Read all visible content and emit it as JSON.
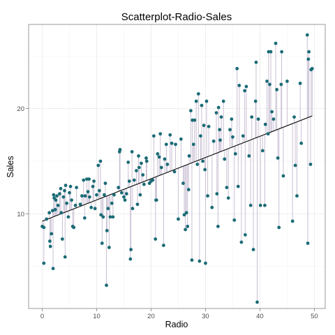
{
  "chart_data": {
    "type": "scatter",
    "title": "Scatterplot-Radio-Sales",
    "xlabel": "Radio",
    "ylabel": "Sales",
    "xlim": [
      -2.5,
      52
    ],
    "ylim": [
      1.0,
      28.0
    ],
    "x_ticks": [
      0,
      10,
      20,
      30,
      40,
      50
    ],
    "y_ticks": [
      10,
      20
    ],
    "grid": true,
    "legend": "none",
    "colors": {
      "points": "#1a6b75",
      "residual_lines": "#c9bfd3",
      "fit_line": "#000000",
      "grid": "#ebebeb",
      "panel_border": "#7f7f7f"
    },
    "fit_line": {
      "x": [
        0,
        49.6
      ],
      "y": [
        9.3,
        19.3
      ]
    },
    "points": [
      [
        0.0,
        8.8
      ],
      [
        0.3,
        8.7
      ],
      [
        0.3,
        5.3
      ],
      [
        0.8,
        9.5
      ],
      [
        1.3,
        10.1
      ],
      [
        1.4,
        7.4
      ],
      [
        1.5,
        6.9
      ],
      [
        1.7,
        8.1
      ],
      [
        1.9,
        10.3
      ],
      [
        2.0,
        4.8
      ],
      [
        2.1,
        11.8
      ],
      [
        2.2,
        11.5
      ],
      [
        2.4,
        10.4
      ],
      [
        2.5,
        11.3
      ],
      [
        2.7,
        11.7
      ],
      [
        2.9,
        10.8
      ],
      [
        3.2,
        11.9
      ],
      [
        3.4,
        12.4
      ],
      [
        3.5,
        10.1
      ],
      [
        3.7,
        7.6
      ],
      [
        3.9,
        11.6
      ],
      [
        4.1,
        12.2
      ],
      [
        4.2,
        5.9
      ],
      [
        4.3,
        12.7
      ],
      [
        4.5,
        11.0
      ],
      [
        4.8,
        9.7
      ],
      [
        5.0,
        12.0
      ],
      [
        5.2,
        12.6
      ],
      [
        5.4,
        11.3
      ],
      [
        5.6,
        8.8
      ],
      [
        5.8,
        8.7
      ],
      [
        6.1,
        10.8
      ],
      [
        6.3,
        12.5
      ],
      [
        7.0,
        10.9
      ],
      [
        7.3,
        11.7
      ],
      [
        7.6,
        13.2
      ],
      [
        7.8,
        9.6
      ],
      [
        7.9,
        11.7
      ],
      [
        8.2,
        13.3
      ],
      [
        8.4,
        12.1
      ],
      [
        8.6,
        13.3
      ],
      [
        8.7,
        11.6
      ],
      [
        9.0,
        10.6
      ],
      [
        9.3,
        12.6
      ],
      [
        9.5,
        13.1
      ],
      [
        9.7,
        10.5
      ],
      [
        10.0,
        11.8
      ],
      [
        10.3,
        14.6
      ],
      [
        10.5,
        12.2
      ],
      [
        10.7,
        15.0
      ],
      [
        10.8,
        9.9
      ],
      [
        11.0,
        7.2
      ],
      [
        11.2,
        9.7
      ],
      [
        11.4,
        11.8
      ],
      [
        11.6,
        12.9
      ],
      [
        11.8,
        3.2
      ],
      [
        11.9,
        8.4
      ],
      [
        12.1,
        10.5
      ],
      [
        12.3,
        6.8
      ],
      [
        12.5,
        9.7
      ],
      [
        12.8,
        11.0
      ],
      [
        13.0,
        9.7
      ],
      [
        13.2,
        11.8
      ],
      [
        14.0,
        12.5
      ],
      [
        14.2,
        15.9
      ],
      [
        14.3,
        16.1
      ],
      [
        14.6,
        12.0
      ],
      [
        15.0,
        11.6
      ],
      [
        15.2,
        11.3
      ],
      [
        15.5,
        11.9
      ],
      [
        15.8,
        14.9
      ],
      [
        16.0,
        13.1
      ],
      [
        16.2,
        5.7
      ],
      [
        16.3,
        6.6
      ],
      [
        16.5,
        15.9
      ],
      [
        16.6,
        10.5
      ],
      [
        16.9,
        13.2
      ],
      [
        17.3,
        14.1
      ],
      [
        17.5,
        10.9
      ],
      [
        17.7,
        15.5
      ],
      [
        17.8,
        14.4
      ],
      [
        18.0,
        11.8
      ],
      [
        18.2,
        14.8
      ],
      [
        18.5,
        13.7
      ],
      [
        18.7,
        12.8
      ],
      [
        19.1,
        15.3
      ],
      [
        19.2,
        15.0
      ],
      [
        19.7,
        12.9
      ],
      [
        20.0,
        13.1
      ],
      [
        20.3,
        13.2
      ],
      [
        20.5,
        17.4
      ],
      [
        20.8,
        7.6
      ],
      [
        20.9,
        11.3
      ],
      [
        21.0,
        11.3
      ],
      [
        21.2,
        15.7
      ],
      [
        21.5,
        15.4
      ],
      [
        21.7,
        17.6
      ],
      [
        21.9,
        14.4
      ],
      [
        22.3,
        7.0
      ],
      [
        22.5,
        15.2
      ],
      [
        22.8,
        16.6
      ],
      [
        23.0,
        14.7
      ],
      [
        23.5,
        17.5
      ],
      [
        23.8,
        16.7
      ],
      [
        24.3,
        14.0
      ],
      [
        24.5,
        16.6
      ],
      [
        25.0,
        9.5
      ],
      [
        25.5,
        17.1
      ],
      [
        25.9,
        12.9
      ],
      [
        26.1,
        9.9
      ],
      [
        26.3,
        8.5
      ],
      [
        26.5,
        10.1
      ],
      [
        26.7,
        8.8
      ],
      [
        26.9,
        12.3
      ],
      [
        27.0,
        15.5
      ],
      [
        27.3,
        19.8
      ],
      [
        27.5,
        5.6
      ],
      [
        27.6,
        18.9
      ],
      [
        27.8,
        16.6
      ],
      [
        28.0,
        18.9
      ],
      [
        28.3,
        20.7
      ],
      [
        28.5,
        14.7
      ],
      [
        28.7,
        21.4
      ],
      [
        28.9,
        5.5
      ],
      [
        29.1,
        17.4
      ],
      [
        29.3,
        20.3
      ],
      [
        29.5,
        15.0
      ],
      [
        29.7,
        18.4
      ],
      [
        29.9,
        14.2
      ],
      [
        30.0,
        5.3
      ],
      [
        30.2,
        20.7
      ],
      [
        30.4,
        11.7
      ],
      [
        30.6,
        18.3
      ],
      [
        31.2,
        10.6
      ],
      [
        31.5,
        16.9
      ],
      [
        32.0,
        19.6
      ],
      [
        32.1,
        11.9
      ],
      [
        32.3,
        8.8
      ],
      [
        32.4,
        20.1
      ],
      [
        32.6,
        18.0
      ],
      [
        32.7,
        17.0
      ],
      [
        32.9,
        19.2
      ],
      [
        33.3,
        20.7
      ],
      [
        33.5,
        15.2
      ],
      [
        33.9,
        12.5
      ],
      [
        34.2,
        11.5
      ],
      [
        34.5,
        18.0
      ],
      [
        34.8,
        19.0
      ],
      [
        35.0,
        17.3
      ],
      [
        35.3,
        9.4
      ],
      [
        35.5,
        15.7
      ],
      [
        35.8,
        23.8
      ],
      [
        36.0,
        12.6
      ],
      [
        36.2,
        22.2
      ],
      [
        36.6,
        7.3
      ],
      [
        36.9,
        17.4
      ],
      [
        37.2,
        21.7
      ],
      [
        37.3,
        8.0
      ],
      [
        37.5,
        22.1
      ],
      [
        38.0,
        15.5
      ],
      [
        38.3,
        10.8
      ],
      [
        38.5,
        19.2
      ],
      [
        38.8,
        6.6
      ],
      [
        39.2,
        20.7
      ],
      [
        39.3,
        24.4
      ],
      [
        39.5,
        1.6
      ],
      [
        39.7,
        19.0
      ],
      [
        40.1,
        10.8
      ],
      [
        40.5,
        16.0
      ],
      [
        40.9,
        10.8
      ],
      [
        41.0,
        18.5
      ],
      [
        41.3,
        22.6
      ],
      [
        41.5,
        17.6
      ],
      [
        41.6,
        25.4
      ],
      [
        41.8,
        22.3
      ],
      [
        42.0,
        25.4
      ],
      [
        42.2,
        19.7
      ],
      [
        42.5,
        19.0
      ],
      [
        42.9,
        26.2
      ],
      [
        43.1,
        21.8
      ],
      [
        43.3,
        15.3
      ],
      [
        43.5,
        8.7
      ],
      [
        43.9,
        22.3
      ],
      [
        44.0,
        25.4
      ],
      [
        44.3,
        13.6
      ],
      [
        45.0,
        22.6
      ],
      [
        46.0,
        9.3
      ],
      [
        46.3,
        19.2
      ],
      [
        46.5,
        14.6
      ],
      [
        46.8,
        11.7
      ],
      [
        47.4,
        22.4
      ],
      [
        47.6,
        16.7
      ],
      [
        48.7,
        27.0
      ],
      [
        48.8,
        7.2
      ],
      [
        48.9,
        24.7
      ],
      [
        49.0,
        25.4
      ],
      [
        49.3,
        14.7
      ],
      [
        49.4,
        23.7
      ],
      [
        49.6,
        23.8
      ]
    ]
  }
}
